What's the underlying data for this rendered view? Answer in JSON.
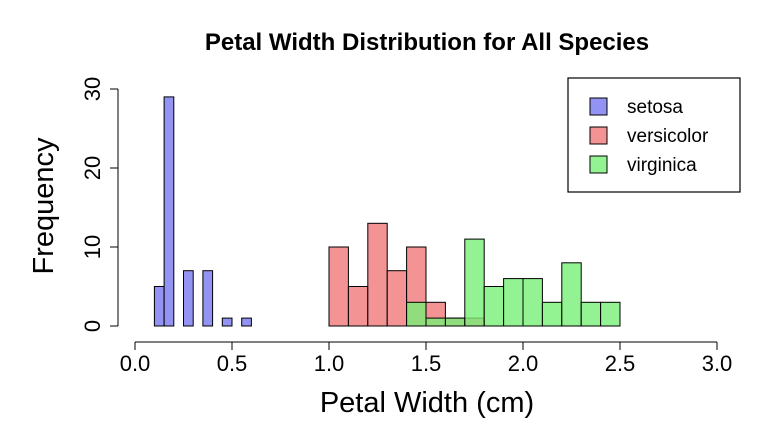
{
  "chart_data": {
    "type": "bar",
    "subtype": "overlaid-histogram",
    "title": "Petal Width Distribution for All Species",
    "xlabel": "Petal Width (cm)",
    "ylabel": "Frequency",
    "xlim": [
      0,
      3.0
    ],
    "ylim": [
      0,
      30
    ],
    "xticks": [
      "0.0",
      "0.5",
      "1.0",
      "1.5",
      "2.0",
      "2.5",
      "3.0"
    ],
    "yticks": [
      "0",
      "10",
      "20",
      "30"
    ],
    "bin_width": 0.1,
    "grid": false,
    "legend_position": "top-right",
    "series": [
      {
        "name": "setosa",
        "color": "#7878f0",
        "bins": [
          {
            "x0": 0.1,
            "x1": 0.15,
            "count": 5
          },
          {
            "x0": 0.15,
            "x1": 0.2,
            "count": 29
          },
          {
            "x0": 0.25,
            "x1": 0.3,
            "count": 7
          },
          {
            "x0": 0.35,
            "x1": 0.4,
            "count": 7
          },
          {
            "x0": 0.45,
            "x1": 0.5,
            "count": 1
          },
          {
            "x0": 0.55,
            "x1": 0.6,
            "count": 1
          }
        ]
      },
      {
        "name": "versicolor",
        "color": "#f07878",
        "bins": [
          {
            "x0": 1.0,
            "x1": 1.1,
            "count": 10
          },
          {
            "x0": 1.1,
            "x1": 1.2,
            "count": 5
          },
          {
            "x0": 1.2,
            "x1": 1.3,
            "count": 13
          },
          {
            "x0": 1.3,
            "x1": 1.4,
            "count": 7
          },
          {
            "x0": 1.4,
            "x1": 1.5,
            "count": 10
          },
          {
            "x0": 1.5,
            "x1": 1.6,
            "count": 3
          },
          {
            "x0": 1.6,
            "x1": 1.7,
            "count": 1
          },
          {
            "x0": 1.7,
            "x1": 1.8,
            "count": 1
          }
        ]
      },
      {
        "name": "virginica",
        "color": "#78f078",
        "bins": [
          {
            "x0": 1.4,
            "x1": 1.5,
            "count": 3
          },
          {
            "x0": 1.5,
            "x1": 1.6,
            "count": 1
          },
          {
            "x0": 1.6,
            "x1": 1.7,
            "count": 1
          },
          {
            "x0": 1.7,
            "x1": 1.8,
            "count": 11
          },
          {
            "x0": 1.8,
            "x1": 1.9,
            "count": 5
          },
          {
            "x0": 1.9,
            "x1": 2.0,
            "count": 6
          },
          {
            "x0": 2.0,
            "x1": 2.1,
            "count": 6
          },
          {
            "x0": 2.1,
            "x1": 2.2,
            "count": 3
          },
          {
            "x0": 2.2,
            "x1": 2.3,
            "count": 8
          },
          {
            "x0": 2.3,
            "x1": 2.4,
            "count": 3
          },
          {
            "x0": 2.4,
            "x1": 2.5,
            "count": 3
          }
        ]
      }
    ]
  }
}
